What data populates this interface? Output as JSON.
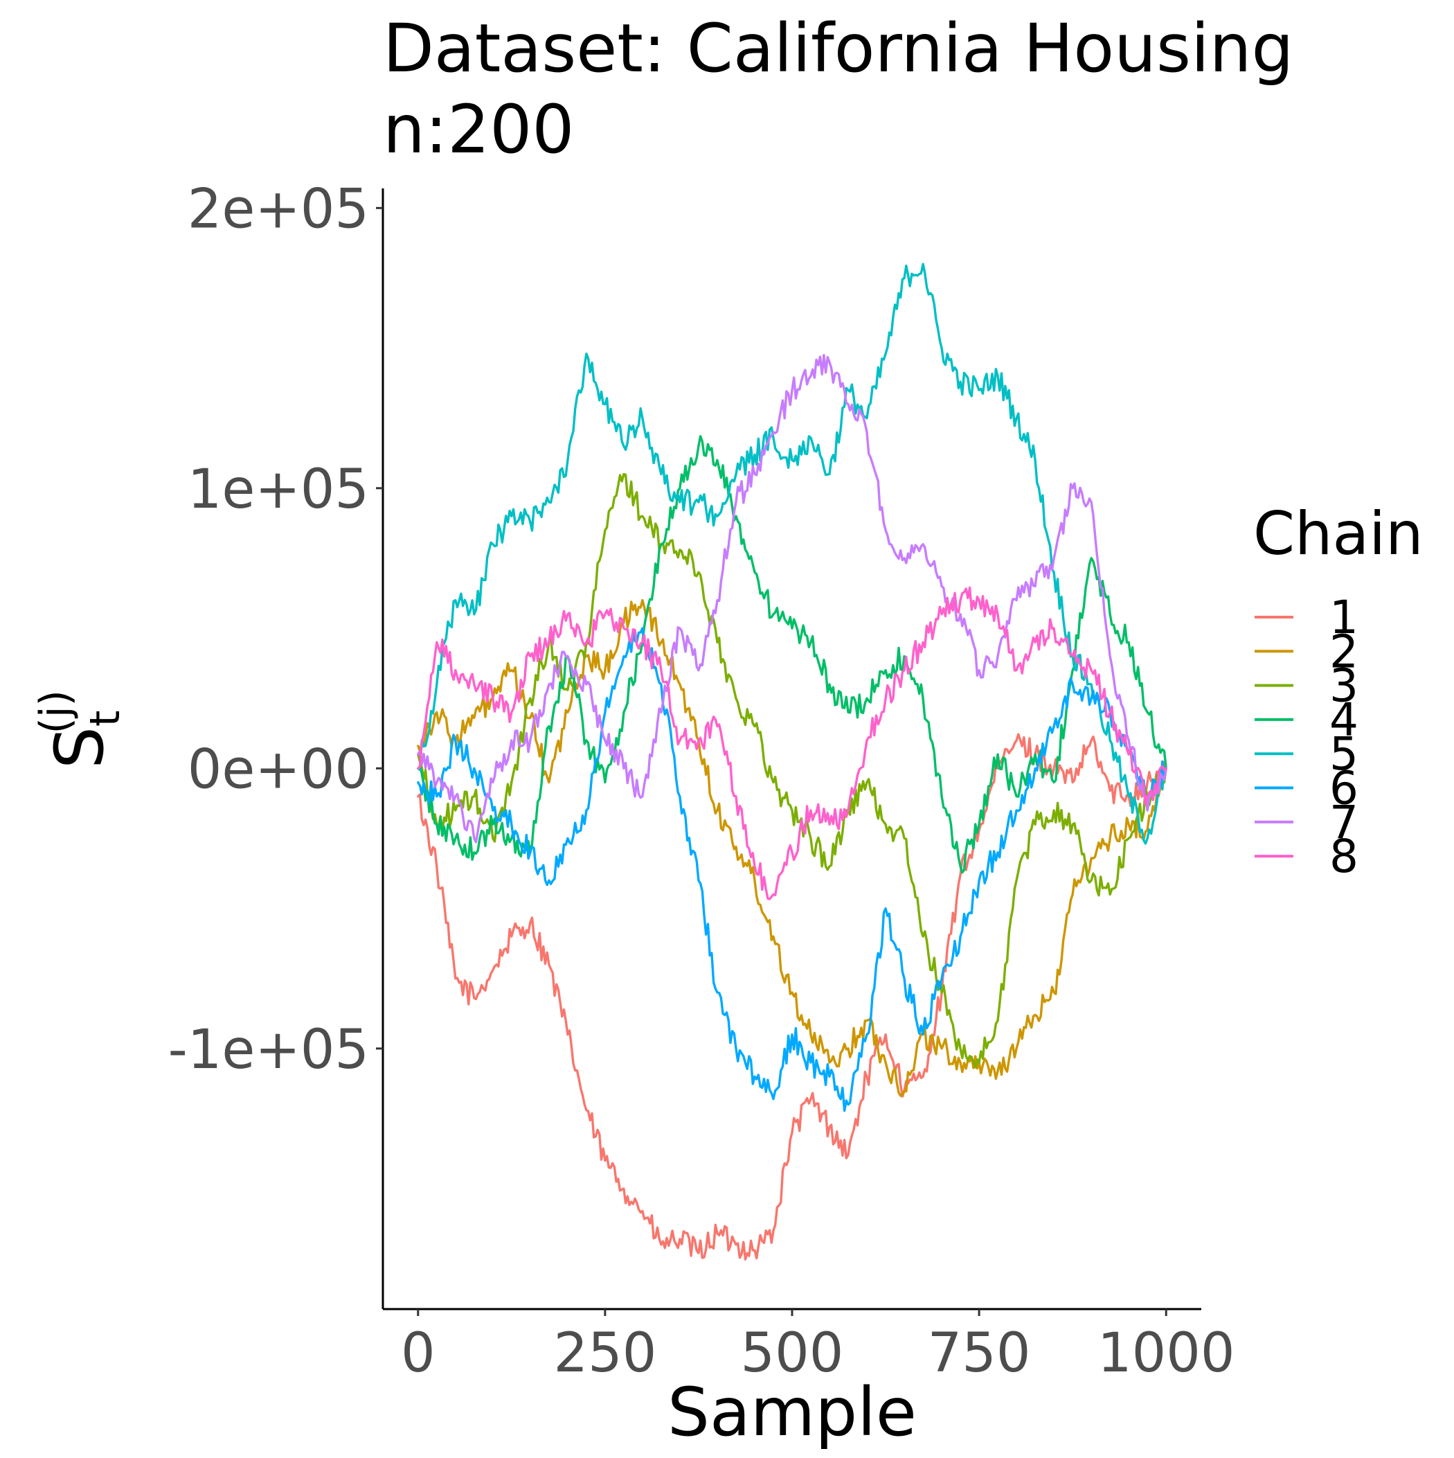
{
  "chart_data": {
    "type": "line",
    "title": [
      "Dataset: California Housing",
      "n:200"
    ],
    "xlabel": "Sample",
    "ylabel": {
      "main": "S",
      "sub": "t",
      "sup": "(j)"
    },
    "xlim": [
      -47,
      1047
    ],
    "ylim": [
      -193000,
      207000
    ],
    "xticks": [
      0,
      250,
      500,
      750,
      1000
    ],
    "xtick_labels": [
      "0",
      "250",
      "500",
      "750",
      "1000"
    ],
    "yticks": [
      -100000,
      0,
      100000,
      200000
    ],
    "ytick_labels": [
      "-1e+05",
      "0e+00",
      "1e+05",
      "2e+05"
    ],
    "grid": false,
    "legend": {
      "title": "Chain",
      "position": "right"
    },
    "x": [
      0,
      25,
      50,
      75,
      100,
      125,
      150,
      175,
      200,
      225,
      250,
      275,
      300,
      325,
      350,
      375,
      400,
      425,
      450,
      475,
      500,
      525,
      550,
      575,
      600,
      625,
      650,
      675,
      700,
      725,
      750,
      775,
      800,
      825,
      850,
      875,
      900,
      925,
      950,
      975,
      1000
    ],
    "series": [
      {
        "name": "1",
        "color": "#F8766D",
        "values": [
          -10000,
          -35000,
          -75000,
          -82000,
          -72000,
          -60000,
          -55000,
          -70000,
          -95000,
          -122000,
          -140000,
          -150000,
          -158000,
          -170000,
          -168000,
          -173000,
          -166000,
          -170000,
          -172000,
          -165000,
          -130000,
          -118000,
          -128000,
          -138000,
          -110000,
          -95000,
          -115000,
          -110000,
          -80000,
          -38000,
          -22000,
          0,
          10000,
          5000,
          0,
          -5000,
          10000,
          -8000,
          -10000,
          -5000,
          0
        ]
      },
      {
        "name": "2",
        "color": "#CD9600",
        "values": [
          8000,
          20000,
          10000,
          18000,
          25000,
          35000,
          18000,
          -5000,
          20000,
          40000,
          35000,
          52000,
          60000,
          45000,
          30000,
          10000,
          -15000,
          -28000,
          -40000,
          -60000,
          -80000,
          -95000,
          -105000,
          -100000,
          -90000,
          -105000,
          -115000,
          -95000,
          -100000,
          -105000,
          -105000,
          -108000,
          -100000,
          -88000,
          -80000,
          -45000,
          -32000,
          -25000,
          -20000,
          -22000,
          0
        ]
      },
      {
        "name": "3",
        "color": "#7CAE00",
        "values": [
          5000,
          -20000,
          -15000,
          -10000,
          -25000,
          -5000,
          25000,
          45000,
          28000,
          45000,
          85000,
          105000,
          90000,
          80000,
          78000,
          70000,
          45000,
          25000,
          15000,
          -5000,
          -15000,
          -25000,
          -35000,
          -15000,
          -5000,
          -20000,
          -25000,
          -60000,
          -80000,
          -100000,
          -105000,
          -90000,
          -40000,
          -20000,
          -15000,
          -20000,
          -40000,
          -45000,
          -25000,
          -10000,
          0
        ]
      },
      {
        "name": "4",
        "color": "#00BE67",
        "values": [
          0,
          -20000,
          -25000,
          -30000,
          -20000,
          -25000,
          -30000,
          15000,
          40000,
          10000,
          -5000,
          20000,
          45000,
          80000,
          100000,
          115000,
          110000,
          90000,
          70000,
          55000,
          50000,
          45000,
          30000,
          20000,
          25000,
          35000,
          40000,
          25000,
          -10000,
          -35000,
          -20000,
          5000,
          -10000,
          5000,
          -5000,
          35000,
          75000,
          55000,
          45000,
          20000,
          0
        ]
      },
      {
        "name": "5",
        "color": "#00BFC4",
        "values": [
          0,
          30000,
          60000,
          55000,
          80000,
          90000,
          88000,
          95000,
          110000,
          148000,
          130000,
          115000,
          125000,
          105000,
          95000,
          95000,
          90000,
          105000,
          112000,
          118000,
          110000,
          118000,
          105000,
          135000,
          125000,
          148000,
          175000,
          180000,
          150000,
          138000,
          135000,
          140000,
          125000,
          110000,
          70000,
          40000,
          30000,
          10000,
          -10000,
          -25000,
          0
        ]
      },
      {
        "name": "6",
        "color": "#00A9FF",
        "values": [
          -5000,
          -10000,
          10000,
          0,
          -15000,
          -20000,
          -30000,
          -40000,
          -25000,
          -15000,
          20000,
          40000,
          50000,
          30000,
          -10000,
          -40000,
          -80000,
          -100000,
          -110000,
          -118000,
          -95000,
          -105000,
          -110000,
          -120000,
          -95000,
          -50000,
          -75000,
          -95000,
          -75000,
          -60000,
          -40000,
          -30000,
          -15000,
          0,
          15000,
          30000,
          25000,
          20000,
          5000,
          -10000,
          0
        ]
      },
      {
        "name": "7",
        "color": "#C77CFF",
        "values": [
          5000,
          -5000,
          -10000,
          -25000,
          -5000,
          10000,
          10000,
          30000,
          40000,
          30000,
          10000,
          0,
          -10000,
          20000,
          50000,
          35000,
          60000,
          95000,
          105000,
          120000,
          135000,
          140000,
          145000,
          130000,
          120000,
          85000,
          75000,
          80000,
          65000,
          55000,
          35000,
          40000,
          60000,
          65000,
          75000,
          100000,
          95000,
          40000,
          10000,
          -15000,
          0
        ]
      },
      {
        "name": "8",
        "color": "#FF61CC",
        "values": [
          0,
          45000,
          35000,
          30000,
          25000,
          20000,
          40000,
          45000,
          55000,
          45000,
          55000,
          50000,
          45000,
          35000,
          10000,
          10000,
          15000,
          -10000,
          -35000,
          -45000,
          -30000,
          -15000,
          -20000,
          -15000,
          10000,
          25000,
          35000,
          45000,
          55000,
          60000,
          60000,
          55000,
          35000,
          45000,
          50000,
          40000,
          35000,
          20000,
          5000,
          -10000,
          0
        ]
      }
    ]
  }
}
